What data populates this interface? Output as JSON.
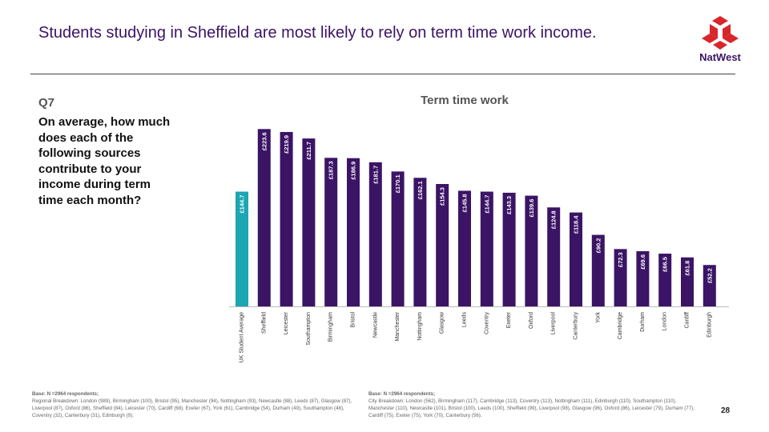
{
  "slide": {
    "title": "Students studying in Sheffield are most likely to rely on term time work income.",
    "logo_text": "NatWest",
    "question_number": "Q7",
    "question_text": "On average, how much does each of the following sources contribute to your income during term time each month?",
    "page_number": "28"
  },
  "footnotes": {
    "left_heading": "Base: N =2964 respondents;",
    "left_body": "Regional Breakdown: London (989), Birmingham (100), Bristol (95), Manchester (94), Nottingham (93), Newcastle (88), Leeds (87), Glasgow (87), Liverpool (87), Oxford (86), Sheffield (84), Leicester (70), Cardiff (68), Exeter (67), York (61), Cambridge (54), Durham (49), Southampton (48), Coventry (32), Canterbury (31), Edinburgh (9).",
    "right_heading": "Base: N =2964 respondents;",
    "right_body": "City Breakdown: London (562), Birmingham (117), Cambridge (113), Coventry (113), Nottingham (111), Edinburgh (110), Southampton (110), Manchester (110), Newcastle (101), Bristol (100), Leeds (100), Sheffield (99), Liverpool (98), Glasgow (96), Oxford (86), Leicester (79), Durham (77), Cardiff (75), Exeter (75), York (70), Canterbury (56)."
  },
  "colors": {
    "average_bar": "#1ba6b2",
    "city_bar": "#3b1466",
    "label_text": "#ffffff",
    "outside_label": "#3b1466",
    "axis": "#bbbbbb",
    "logo_red": "#d9262b"
  },
  "chart_data": {
    "type": "bar",
    "title": "Term time work",
    "categories": [
      "UK Student Average",
      "Sheffield",
      "Leicester",
      "Southampton",
      "Birmingham",
      "Bristol",
      "Newcastle",
      "Manchester",
      "Nottingham",
      "Glasgow",
      "Leeds",
      "Coventry",
      "Exeter",
      "Oxford",
      "Liverpool",
      "Canterbury",
      "York",
      "Cambridge",
      "Durham",
      "London",
      "Cardiff",
      "Edinburgh"
    ],
    "values": [
      144.7,
      223.6,
      219.9,
      211.7,
      187.3,
      186.9,
      181.7,
      170.1,
      162.1,
      154.3,
      145.8,
      144.7,
      143.3,
      139.6,
      124.8,
      118.4,
      90.2,
      72.3,
      69.6,
      66.5,
      61.8,
      52.2
    ],
    "labels": [
      "£144.7",
      "£223.6",
      "£219.9",
      "£211.7",
      "£187.3",
      "£186.9",
      "£181.7",
      "£170.1",
      "£162.1",
      "£154.3",
      "£145.8",
      "£144.7",
      "£143.3",
      "£139.6",
      "£124.8",
      "£118.4",
      "£90.2",
      "£72.3",
      "£69.6",
      "£66.5",
      "£61.8",
      "£52.2"
    ],
    "ylim": [
      0,
      235
    ],
    "grid": false,
    "legend": "none"
  }
}
